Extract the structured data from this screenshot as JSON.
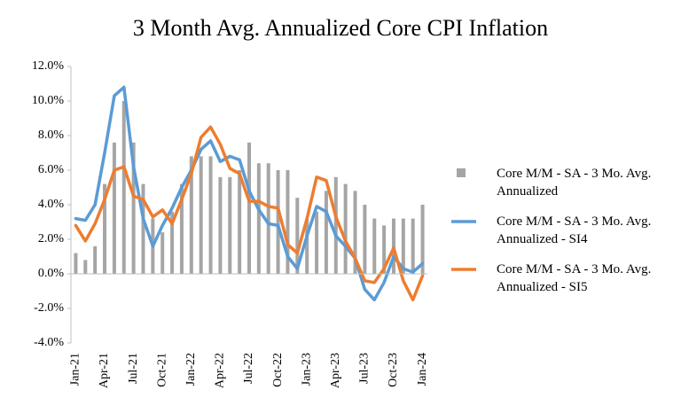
{
  "chart_data": {
    "type": "bar",
    "title": "3 Month Avg. Annualized Core CPI Inflation",
    "categories": [
      "Jan-21",
      null,
      null,
      "Apr-21",
      null,
      null,
      "Jul-21",
      null,
      null,
      "Oct-21",
      null,
      null,
      "Jan-22",
      null,
      null,
      "Apr-22",
      null,
      null,
      "Jul-22",
      null,
      null,
      "Oct-22",
      null,
      null,
      "Jan-23",
      null,
      null,
      "Apr-23",
      null,
      null,
      "Jul-23",
      null,
      null,
      "Oct-23",
      null,
      null,
      "Jan-24"
    ],
    "series": [
      {
        "name": "Core M/M - SA - 3 Mo. Avg. Annualized",
        "type": "bar",
        "color": "#a5a5a5",
        "values": [
          1.2,
          0.8,
          1.6,
          5.2,
          7.6,
          10.0,
          7.6,
          5.2,
          3.2,
          2.4,
          3.6,
          5.2,
          6.8,
          6.8,
          6.8,
          5.6,
          5.6,
          6.0,
          7.6,
          6.4,
          6.4,
          6.0,
          6.0,
          4.4,
          3.2,
          3.6,
          4.8,
          5.6,
          5.2,
          4.8,
          4.0,
          3.2,
          2.8,
          3.2,
          3.2,
          3.2,
          4.0
        ]
      },
      {
        "name": "Core M/M - SA - 3 Mo. Avg. Annualized - SI4",
        "type": "line",
        "color": "#5b9bd5",
        "values": [
          3.2,
          3.1,
          4.0,
          7.0,
          10.3,
          10.8,
          6.2,
          3.2,
          1.6,
          2.8,
          3.8,
          5.0,
          6.0,
          7.2,
          7.7,
          6.5,
          6.8,
          6.6,
          4.8,
          3.7,
          2.9,
          2.8,
          1.0,
          0.3,
          2.2,
          3.9,
          3.6,
          2.2,
          1.6,
          0.9,
          -0.9,
          -1.5,
          -0.5,
          1.0,
          0.3,
          0.1,
          0.6
        ]
      },
      {
        "name": "Core M/M - SA - 3 Mo. Avg. Annualized - SI5",
        "type": "line",
        "color": "#ed7d31",
        "values": [
          2.8,
          1.9,
          2.9,
          4.3,
          6.0,
          6.2,
          4.5,
          4.3,
          3.3,
          3.7,
          2.9,
          4.3,
          5.8,
          7.9,
          8.5,
          7.5,
          6.1,
          5.8,
          4.2,
          4.2,
          3.9,
          3.8,
          1.7,
          1.2,
          3.2,
          5.6,
          5.4,
          3.3,
          1.9,
          0.9,
          -0.4,
          -0.5,
          0.3,
          1.5,
          -0.4,
          -1.5,
          -0.1
        ]
      }
    ],
    "ylim": [
      -4,
      12
    ],
    "yticks": [
      {
        "value": -4,
        "label": "-4.0%"
      },
      {
        "value": -2,
        "label": "-2.0%"
      },
      {
        "value": 0,
        "label": "0.0%"
      },
      {
        "value": 2,
        "label": "2.0%"
      },
      {
        "value": 4,
        "label": "4.0%"
      },
      {
        "value": 6,
        "label": "6.0%"
      },
      {
        "value": 8,
        "label": "8.0%"
      },
      {
        "value": 10,
        "label": "10.0%"
      },
      {
        "value": 12,
        "label": "12.0%"
      }
    ],
    "grid": false,
    "legend": "right"
  }
}
